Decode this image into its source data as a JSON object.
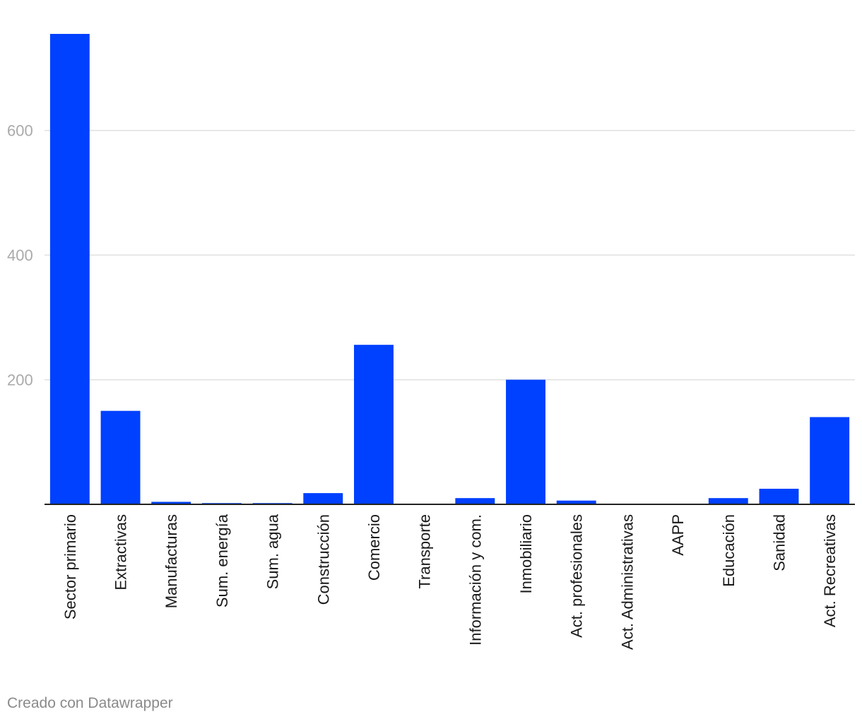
{
  "chart_data": {
    "type": "bar",
    "title": "",
    "xlabel": "",
    "ylabel": "",
    "ylim": [
      0,
      755
    ],
    "yticks": [
      200,
      400,
      600
    ],
    "categories": [
      "Sector primario",
      "Extractivas",
      "Manufacturas",
      "Sum. energía",
      "Sum. agua",
      "Construcción",
      "Comercio",
      "Transporte",
      "Información y com.",
      "Inmobiliario",
      "Act. profesionales",
      "Act. Administrativas",
      "AAPP",
      "Educación",
      "Sanidad",
      "Act. Recreativas"
    ],
    "values": [
      755,
      150,
      4,
      2,
      2,
      18,
      256,
      0,
      10,
      200,
      6,
      0,
      0,
      10,
      25,
      140
    ],
    "bar_color": "#0040ff",
    "grid": true
  },
  "footer": {
    "credit": "Creado con Datawrapper"
  }
}
